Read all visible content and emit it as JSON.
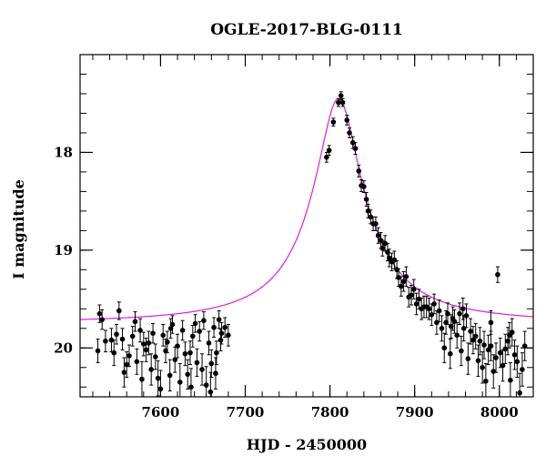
{
  "chart_data": {
    "type": "scatter",
    "title": "OGLE-2017-BLG-0111",
    "xlabel": "HJD - 2450000",
    "ylabel": "I magnitude",
    "xlim": [
      7505,
      8040
    ],
    "ylim": [
      20.5,
      17.0
    ],
    "y_inverted": true,
    "x_ticks": [
      7600,
      7700,
      7800,
      7900,
      8000
    ],
    "y_ticks": [
      18,
      19,
      20
    ],
    "x_minor_step": 20,
    "y_minor_step": 0.2,
    "grid": false,
    "legend": "none",
    "colors": {
      "points": "#000000",
      "model": "#e21be2"
    },
    "model_curve": {
      "baseline_mag": 19.75,
      "peak_x": 7810,
      "peak_mag": 17.45,
      "half_width_days": 22
    },
    "series": [
      {
        "kind": "points",
        "points": [
          [
            7528,
            19.65,
            0.09
          ],
          [
            7531,
            19.71,
            0.1
          ],
          [
            7526,
            20.03,
            0.12
          ],
          [
            7535,
            19.93,
            0.11
          ],
          [
            7542,
            19.92,
            0.12
          ],
          [
            7548,
            19.86,
            0.1
          ],
          [
            7551,
            19.62,
            0.09
          ],
          [
            7555,
            19.91,
            0.11
          ],
          [
            7557,
            20.25,
            0.15
          ],
          [
            7560,
            20.17,
            0.13
          ],
          [
            7563,
            20.08,
            0.11
          ],
          [
            7567,
            19.88,
            0.1
          ],
          [
            7570,
            19.73,
            0.1
          ],
          [
            7572,
            20.14,
            0.13
          ],
          [
            7576,
            19.82,
            0.12
          ],
          [
            7578,
            20.32,
            0.18
          ],
          [
            7583,
            20.02,
            0.12
          ],
          [
            7586,
            19.95,
            0.12
          ],
          [
            7589,
            20.22,
            0.16
          ],
          [
            7591,
            19.85,
            0.1
          ],
          [
            7594,
            20.09,
            0.13
          ],
          [
            7597,
            20.31,
            0.18
          ],
          [
            7600,
            20.42,
            0.19
          ],
          [
            7603,
            19.87,
            0.11
          ],
          [
            7606,
            20.03,
            0.12
          ],
          [
            7608,
            19.94,
            0.11
          ],
          [
            7611,
            20.28,
            0.16
          ],
          [
            7614,
            19.76,
            0.09
          ],
          [
            7617,
            20.12,
            0.13
          ],
          [
            7620,
            19.98,
            0.12
          ],
          [
            7623,
            20.35,
            0.19
          ],
          [
            7626,
            19.82,
            0.1
          ],
          [
            7629,
            20.06,
            0.12
          ],
          [
            7632,
            20.27,
            0.15
          ],
          [
            7635,
            20.05,
            0.12
          ],
          [
            7638,
            19.88,
            0.11
          ],
          [
            7641,
            19.75,
            0.09
          ],
          [
            7643,
            20.15,
            0.14
          ],
          [
            7646,
            19.83,
            0.1
          ],
          [
            7649,
            20.22,
            0.16
          ],
          [
            7651,
            19.72,
            0.09
          ],
          [
            7654,
            20.38,
            0.19
          ],
          [
            7657,
            19.95,
            0.12
          ],
          [
            7660,
            20.16,
            0.14
          ],
          [
            7663,
            19.79,
            0.1
          ],
          [
            7666,
            20.05,
            0.12
          ],
          [
            7669,
            19.71,
            0.09
          ],
          [
            7672,
            19.85,
            0.11
          ],
          [
            7676,
            19.79,
            0.1
          ],
          [
            7680,
            19.87,
            0.11
          ],
          [
            7545,
            20.05,
            0.13
          ],
          [
            7580,
            19.96,
            0.12
          ],
          [
            7612,
            19.8,
            0.1
          ],
          [
            7636,
            20.4,
            0.19
          ],
          [
            7659,
            20.45,
            0.2
          ],
          [
            7665,
            20.26,
            0.16
          ],
          [
            7671,
            19.92,
            0.11
          ],
          [
            7796,
            18.05,
            0.05
          ],
          [
            7799,
            17.98,
            0.05
          ],
          [
            7804,
            17.69,
            0.04
          ],
          [
            7810,
            17.49,
            0.04
          ],
          [
            7813,
            17.42,
            0.04
          ],
          [
            7815,
            17.49,
            0.04
          ],
          [
            7820,
            17.67,
            0.05
          ],
          [
            7823,
            17.8,
            0.05
          ],
          [
            7827,
            17.9,
            0.06
          ],
          [
            7830,
            17.96,
            0.06
          ],
          [
            7834,
            18.19,
            0.06
          ],
          [
            7837,
            18.34,
            0.06
          ],
          [
            7840,
            18.35,
            0.06
          ],
          [
            7843,
            18.48,
            0.07
          ],
          [
            7845,
            18.6,
            0.07
          ],
          [
            7848,
            18.66,
            0.07
          ],
          [
            7851,
            18.73,
            0.07
          ],
          [
            7854,
            18.73,
            0.07
          ],
          [
            7857,
            18.85,
            0.08
          ],
          [
            7860,
            18.9,
            0.08
          ],
          [
            7862,
            18.98,
            0.08
          ],
          [
            7865,
            18.93,
            0.08
          ],
          [
            7868,
            19.02,
            0.09
          ],
          [
            7870,
            19.08,
            0.09
          ],
          [
            7873,
            19.12,
            0.09
          ],
          [
            7876,
            19.1,
            0.09
          ],
          [
            7879,
            19.2,
            0.09
          ],
          [
            7881,
            19.28,
            0.09
          ],
          [
            7884,
            19.37,
            0.1
          ],
          [
            7887,
            19.32,
            0.1
          ],
          [
            7890,
            19.27,
            0.1
          ],
          [
            7893,
            19.48,
            0.1
          ],
          [
            7896,
            19.46,
            0.1
          ],
          [
            7899,
            19.4,
            0.1
          ],
          [
            7902,
            19.55,
            0.11
          ],
          [
            7905,
            19.5,
            0.1
          ],
          [
            7908,
            19.6,
            0.11
          ],
          [
            7911,
            19.58,
            0.11
          ],
          [
            7914,
            19.58,
            0.11
          ],
          [
            7917,
            19.6,
            0.11
          ],
          [
            7920,
            19.66,
            0.11
          ],
          [
            7923,
            19.55,
            0.1
          ],
          [
            7926,
            19.74,
            0.12
          ],
          [
            7929,
            19.62,
            0.11
          ],
          [
            7932,
            19.8,
            0.13
          ],
          [
            7935,
            20.0,
            0.15
          ],
          [
            7937,
            19.74,
            0.12
          ],
          [
            7939,
            19.65,
            0.11
          ],
          [
            7942,
            20.06,
            0.15
          ],
          [
            7945,
            19.7,
            0.12
          ],
          [
            7947,
            19.73,
            0.12
          ],
          [
            7950,
            19.87,
            0.13
          ],
          [
            7953,
            19.65,
            0.11
          ],
          [
            7955,
            20.03,
            0.15
          ],
          [
            7958,
            19.8,
            0.13
          ],
          [
            7961,
            19.67,
            0.12
          ],
          [
            7963,
            20.11,
            0.16
          ],
          [
            7966,
            19.83,
            0.13
          ],
          [
            7969,
            19.92,
            0.14
          ],
          [
            7972,
            19.88,
            0.13
          ],
          [
            7975,
            20.13,
            0.16
          ],
          [
            7977,
            19.93,
            0.14
          ],
          [
            7980,
            20.2,
            0.16
          ],
          [
            7982,
            19.97,
            0.14
          ],
          [
            7984,
            20.34,
            0.18
          ],
          [
            7987,
            20.02,
            0.15
          ],
          [
            7990,
            19.98,
            0.15
          ],
          [
            7993,
            20.24,
            0.17
          ],
          [
            7996,
            20.1,
            0.15
          ],
          [
            7998,
            19.25,
            0.08
          ],
          [
            8001,
            20.05,
            0.15
          ],
          [
            8004,
            20.18,
            0.16
          ],
          [
            8007,
            20.01,
            0.15
          ],
          [
            8010,
            19.93,
            0.14
          ],
          [
            8013,
            20.33,
            0.18
          ],
          [
            8015,
            19.84,
            0.14
          ],
          [
            8018,
            20.07,
            0.15
          ],
          [
            8021,
            20.14,
            0.16
          ],
          [
            8024,
            20.46,
            0.2
          ],
          [
            8027,
            20.22,
            0.17
          ],
          [
            8030,
            19.98,
            0.15
          ],
          [
            7943,
            19.78,
            0.12
          ],
          [
            7957,
            19.6,
            0.11
          ],
          [
            7990,
            19.74,
            0.12
          ],
          [
            8012,
            19.87,
            0.13
          ]
        ]
      },
      {
        "kind": "model"
      }
    ]
  }
}
